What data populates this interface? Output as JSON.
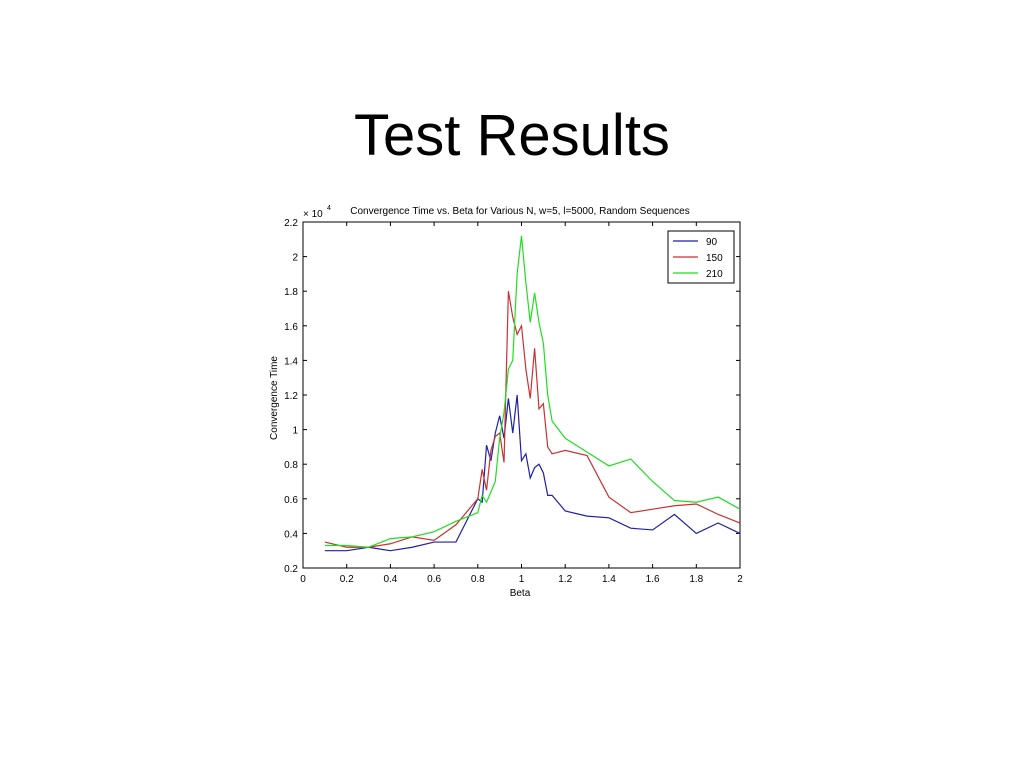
{
  "slide": {
    "title": "Test Results"
  },
  "chart_data": {
    "type": "line",
    "title": "Convergence Time vs. Beta for Various N, w=5, l=5000, Random Sequences",
    "x_label": "Beta",
    "y_label": "Convergence Time",
    "y_multiplier": {
      "base": "× 10",
      "power": "4"
    },
    "x": [
      0.1,
      0.2,
      0.3,
      0.4,
      0.5,
      0.6,
      0.7,
      0.8,
      0.82,
      0.84,
      0.86,
      0.88,
      0.9,
      0.92,
      0.94,
      0.96,
      0.98,
      1.0,
      1.02,
      1.04,
      1.06,
      1.08,
      1.1,
      1.12,
      1.14,
      1.2,
      1.3,
      1.4,
      1.5,
      1.6,
      1.7,
      1.8,
      1.9,
      2.0
    ],
    "series": [
      {
        "name": "90",
        "color": "#1f1fa8",
        "values": [
          0.3,
          0.3,
          0.32,
          0.3,
          0.32,
          0.35,
          0.35,
          0.6,
          0.58,
          0.91,
          0.82,
          0.98,
          1.08,
          0.95,
          1.18,
          0.98,
          1.2,
          0.82,
          0.86,
          0.72,
          0.78,
          0.8,
          0.75,
          0.62,
          0.62,
          0.53,
          0.5,
          0.49,
          0.43,
          0.42,
          0.51,
          0.4,
          0.46,
          0.4
        ]
      },
      {
        "name": "150",
        "color": "#c83232",
        "values": [
          0.35,
          0.32,
          0.32,
          0.34,
          0.38,
          0.36,
          0.45,
          0.6,
          0.77,
          0.65,
          0.88,
          0.96,
          0.98,
          0.81,
          1.8,
          1.65,
          1.55,
          1.6,
          1.35,
          1.18,
          1.47,
          1.12,
          1.15,
          0.9,
          0.86,
          0.88,
          0.85,
          0.61,
          0.52,
          0.54,
          0.56,
          0.57,
          0.51,
          0.46
        ]
      },
      {
        "name": "210",
        "color": "#22dd22",
        "values": [
          0.33,
          0.33,
          0.32,
          0.37,
          0.38,
          0.41,
          0.47,
          0.52,
          0.62,
          0.58,
          0.64,
          0.7,
          0.95,
          1.1,
          1.35,
          1.4,
          1.9,
          2.12,
          1.85,
          1.62,
          1.79,
          1.62,
          1.5,
          1.2,
          1.05,
          0.95,
          0.87,
          0.79,
          0.83,
          0.7,
          0.59,
          0.58,
          0.61,
          0.54
        ]
      }
    ],
    "xlim": [
      0,
      2
    ],
    "xticks": [
      0,
      0.2,
      0.4,
      0.6,
      0.8,
      1,
      1.2,
      1.4,
      1.6,
      1.8,
      2
    ],
    "ylim": [
      0.2,
      2.2
    ],
    "yticks": [
      0.2,
      0.4,
      0.6,
      0.8,
      1,
      1.2,
      1.4,
      1.6,
      1.8,
      2,
      2.2
    ],
    "legend": "top-right",
    "grid": false
  }
}
